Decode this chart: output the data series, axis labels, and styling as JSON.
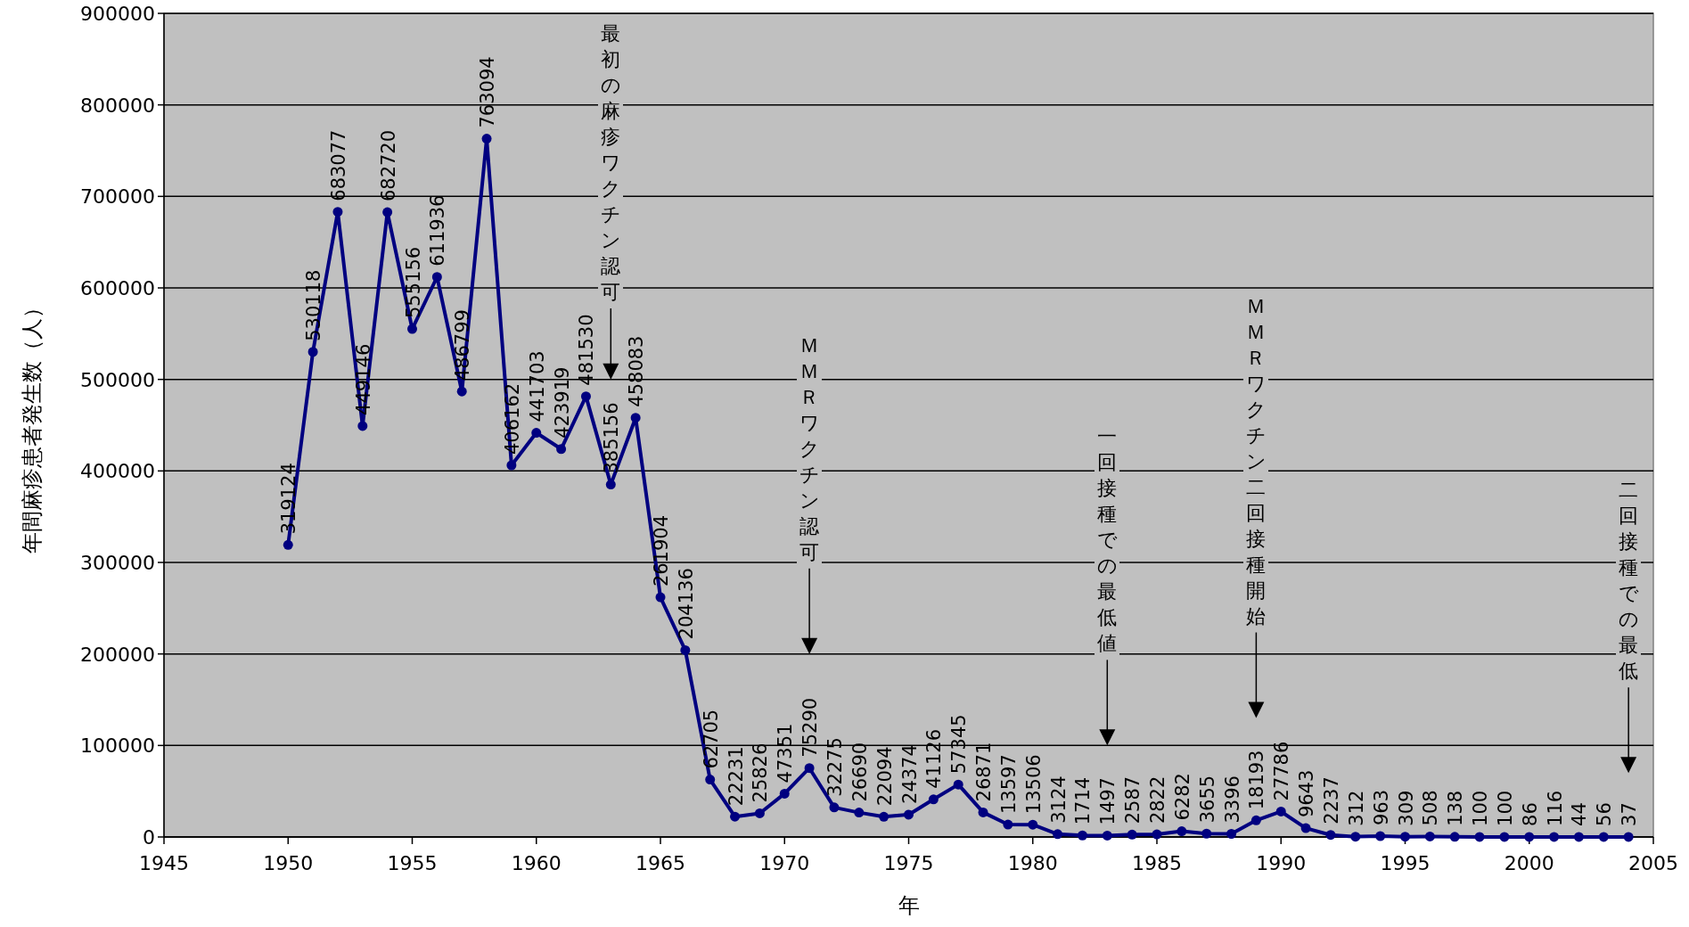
{
  "chart_data": {
    "type": "line",
    "xlabel": "年",
    "ylabel": "年間麻疹患者発生数（人）",
    "x": [
      1950,
      1951,
      1952,
      1953,
      1954,
      1955,
      1956,
      1957,
      1958,
      1959,
      1960,
      1961,
      1962,
      1963,
      1964,
      1965,
      1966,
      1967,
      1968,
      1969,
      1970,
      1971,
      1972,
      1973,
      1974,
      1975,
      1976,
      1977,
      1978,
      1979,
      1980,
      1981,
      1982,
      1983,
      1984,
      1985,
      1986,
      1987,
      1988,
      1989,
      1990,
      1991,
      1992,
      1993,
      1994,
      1995,
      1996,
      1997,
      1998,
      1999,
      2000,
      2001,
      2002,
      2003,
      2004
    ],
    "series": [
      {
        "color": "#000080",
        "values": [
          319124,
          530118,
          683077,
          449146,
          682720,
          555156,
          611936,
          486799,
          763094,
          406162,
          441703,
          423919,
          481530,
          385156,
          458083,
          261904,
          204136,
          62705,
          22231,
          25826,
          47351,
          75290,
          32275,
          26690,
          22094,
          24374,
          41126,
          57345,
          26871,
          13597,
          13506,
          3124,
          1714,
          1497,
          2587,
          2822,
          6282,
          3655,
          3396,
          18193,
          27786,
          9643,
          2237,
          312,
          963,
          309,
          508,
          138,
          100,
          100,
          86,
          116,
          44,
          56,
          37
        ]
      }
    ],
    "data_labels": true,
    "marker": "circle",
    "line_style": "solid",
    "grid": "y",
    "xlim": [
      1945,
      2005
    ],
    "xticks": [
      1945,
      1950,
      1955,
      1960,
      1965,
      1970,
      1975,
      1980,
      1985,
      1990,
      1995,
      2000,
      2005
    ],
    "ylim": [
      0,
      900000
    ],
    "yticks": [
      0,
      100000,
      200000,
      300000,
      400000,
      500000,
      600000,
      700000,
      800000,
      900000
    ],
    "annotations": [
      "最初の麻疹ワクチン認可",
      "ＭＭＲワクチン認可",
      "一回接種での最低値",
      "ＭＭＲワクチン二回接種開始",
      "二回接種での最低"
    ]
  }
}
